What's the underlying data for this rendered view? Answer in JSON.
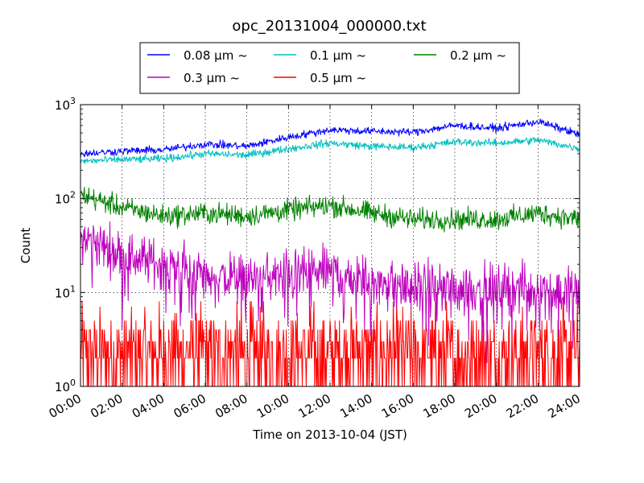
{
  "chart_data": {
    "type": "line",
    "title": "opc_20131004_000000.txt",
    "xlabel": "Time on 2013-10-04 (JST)",
    "ylabel": "Count",
    "xlim_hours": [
      0,
      24
    ],
    "ylim": [
      1,
      1000
    ],
    "yscale": "log",
    "grid": true,
    "legend_placement": "top-center, above plot",
    "x_tick_labels": [
      "00:00",
      "02:00",
      "04:00",
      "06:00",
      "08:00",
      "10:00",
      "12:00",
      "14:00",
      "16:00",
      "18:00",
      "20:00",
      "22:00",
      "24:00"
    ],
    "y_tick_labels": [
      {
        "base": "10",
        "exp": "0"
      },
      {
        "base": "10",
        "exp": "1"
      },
      {
        "base": "10",
        "exp": "2"
      },
      {
        "base": "10",
        "exp": "3"
      }
    ],
    "x": [
      "00:00",
      "02:00",
      "04:00",
      "06:00",
      "08:00",
      "10:00",
      "12:00",
      "14:00",
      "16:00",
      "18:00",
      "20:00",
      "22:00",
      "24:00"
    ],
    "series": [
      {
        "name": "0.08 μm ~",
        "color": "#0000ff",
        "values": [
          300,
          320,
          330,
          380,
          360,
          450,
          540,
          520,
          510,
          600,
          560,
          660,
          480
        ]
      },
      {
        "name": "0.1 μm ~",
        "color": "#00bfbf",
        "values": [
          250,
          260,
          265,
          300,
          290,
          340,
          390,
          360,
          350,
          400,
          390,
          420,
          340
        ]
      },
      {
        "name": "0.2 μm ~",
        "color": "#008000",
        "values": [
          110,
          80,
          65,
          70,
          65,
          75,
          85,
          70,
          60,
          60,
          60,
          70,
          60
        ]
      },
      {
        "name": "0.3 μm ~",
        "color": "#bf00bf",
        "values": [
          40,
          25,
          20,
          15,
          14,
          15,
          17,
          13,
          11,
          11,
          11,
          11,
          10
        ]
      },
      {
        "name": "0.5 μm ~",
        "color": "#ff0000",
        "values": [
          3,
          3,
          2.5,
          2.5,
          2,
          2,
          2,
          2,
          2,
          2,
          2,
          2,
          2
        ]
      }
    ]
  }
}
